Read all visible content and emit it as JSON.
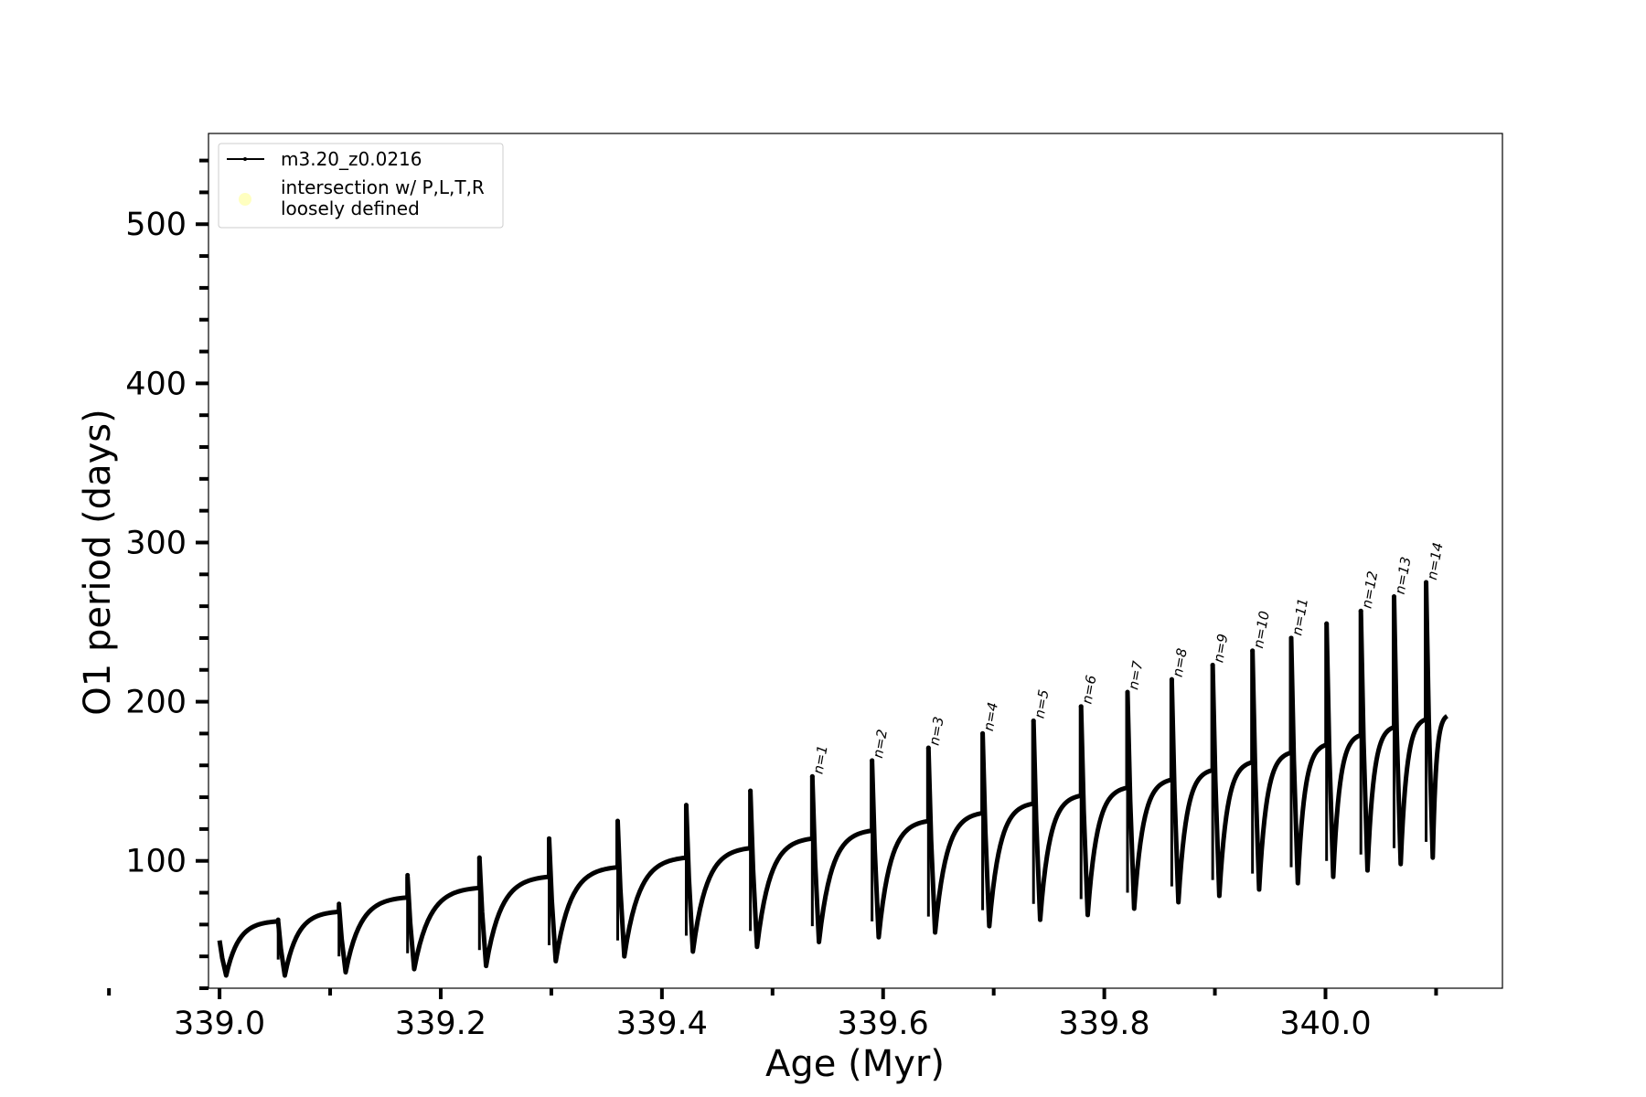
{
  "chart_data": {
    "type": "line",
    "xlabel": "Age (Myr)",
    "ylabel": "O1 period (days)",
    "xlim": [
      338.99,
      340.16
    ],
    "ylim": [
      20,
      557
    ],
    "x_major_ticks": [
      339.0,
      339.2,
      339.4,
      339.6,
      339.8,
      340.0
    ],
    "x_tick_labels": [
      "339.0",
      "339.2",
      "339.4",
      "339.6",
      "339.8",
      "340.0"
    ],
    "y_major_ticks": [
      100,
      200,
      300,
      400,
      500
    ],
    "y_tick_labels": [
      "100",
      "200",
      "300",
      "400",
      "500"
    ],
    "grid": false,
    "legend": {
      "placement": "top-left",
      "entries": [
        {
          "label": "m3.20_z0.0216",
          "color": "#000000",
          "marker": "line-dot"
        },
        {
          "label": "intersection w/ P,L,T,R\nloosely defined",
          "color": "#ffffc0",
          "marker": "circle"
        }
      ]
    },
    "series": [
      {
        "name": "m3.20_z0.0216",
        "color": "#000000",
        "description_of_shape": "sawtooth thermal-pulse cycles",
        "pulses": [
          {
            "x": 339.0,
            "start": 50,
            "end": 62,
            "min": 28,
            "peak": null
          },
          {
            "x": 339.053,
            "start": 62,
            "end": 68,
            "min": 28,
            "peak": 63
          },
          {
            "x": 339.108,
            "start": 72,
            "end": 77,
            "min": 30,
            "peak": 73
          },
          {
            "x": 339.17,
            "start": 90,
            "end": 83,
            "min": 32,
            "peak": 91
          },
          {
            "x": 339.235,
            "start": 102,
            "end": 90,
            "min": 34,
            "peak": 102
          },
          {
            "x": 339.298,
            "start": 114,
            "end": 96,
            "min": 37,
            "peak": 114
          },
          {
            "x": 339.36,
            "start": 125,
            "end": 102,
            "min": 40,
            "peak": 125
          },
          {
            "x": 339.422,
            "start": 135,
            "end": 108,
            "min": 43,
            "peak": 135
          },
          {
            "x": 339.48,
            "start": 144,
            "end": 114,
            "min": 46,
            "peak": 144
          },
          {
            "x": 339.536,
            "start": 153,
            "end": 119,
            "min": 49,
            "peak": 153
          },
          {
            "x": 339.59,
            "start": 163,
            "end": 125,
            "min": 52,
            "peak": 163
          },
          {
            "x": 339.641,
            "start": 171,
            "end": 130,
            "min": 55,
            "peak": 171
          },
          {
            "x": 339.69,
            "start": 180,
            "end": 136,
            "min": 59,
            "peak": 180
          },
          {
            "x": 339.736,
            "start": 188,
            "end": 141,
            "min": 63,
            "peak": 188
          },
          {
            "x": 339.779,
            "start": 197,
            "end": 146,
            "min": 66,
            "peak": 197
          },
          {
            "x": 339.821,
            "start": 206,
            "end": 151,
            "min": 70,
            "peak": 206
          },
          {
            "x": 339.861,
            "start": 214,
            "end": 157,
            "min": 74,
            "peak": 214
          },
          {
            "x": 339.898,
            "start": 223,
            "end": 162,
            "min": 78,
            "peak": 223
          },
          {
            "x": 339.934,
            "start": 232,
            "end": 168,
            "min": 82,
            "peak": 232
          },
          {
            "x": 339.969,
            "start": 240,
            "end": 173,
            "min": 86,
            "peak": 240
          },
          {
            "x": 340.001,
            "start": 249,
            "end": 179,
            "min": 90,
            "peak": 249
          },
          {
            "x": 340.032,
            "start": 257,
            "end": 184,
            "min": 94,
            "peak": 257
          },
          {
            "x": 340.062,
            "start": 266,
            "end": 189,
            "min": 98,
            "peak": 266
          },
          {
            "x": 340.091,
            "start": 275,
            "end": 191,
            "min": 102,
            "peak": 275
          }
        ],
        "final_x": 340.11
      }
    ],
    "annotations": [
      {
        "text": "n=1",
        "x": 339.536,
        "y": 153
      },
      {
        "text": "n=2",
        "x": 339.59,
        "y": 163
      },
      {
        "text": "n=3",
        "x": 339.641,
        "y": 171
      },
      {
        "text": "n=4",
        "x": 339.69,
        "y": 180
      },
      {
        "text": "n=5",
        "x": 339.736,
        "y": 188
      },
      {
        "text": "n=6",
        "x": 339.779,
        "y": 197
      },
      {
        "text": "n=7",
        "x": 339.821,
        "y": 206
      },
      {
        "text": "n=8",
        "x": 339.861,
        "y": 214
      },
      {
        "text": "n=9",
        "x": 339.898,
        "y": 223
      },
      {
        "text": "n=10",
        "x": 339.934,
        "y": 232
      },
      {
        "text": "n=11",
        "x": 339.969,
        "y": 240
      },
      {
        "text": "n=12",
        "x": 340.032,
        "y": 257
      },
      {
        "text": "n=13",
        "x": 340.062,
        "y": 266
      },
      {
        "text": "n=14",
        "x": 340.091,
        "y": 275
      }
    ]
  }
}
